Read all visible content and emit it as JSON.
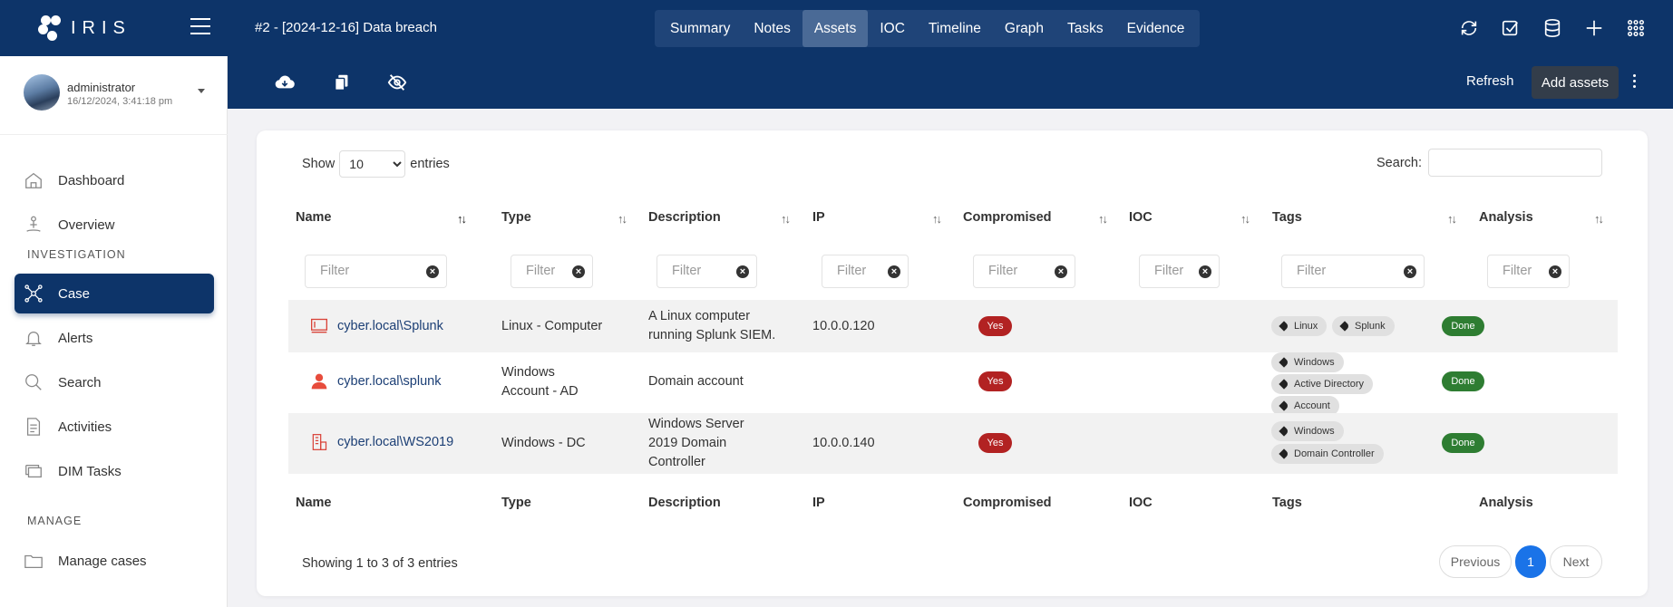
{
  "brand": {
    "name": "IRIS"
  },
  "case_title": "#2 - [2024-12-16] Data breach",
  "tabs": [
    "Summary",
    "Notes",
    "Assets",
    "IOC",
    "Timeline",
    "Graph",
    "Tasks",
    "Evidence"
  ],
  "active_tab": "Assets",
  "top_icons": [
    "refresh-icon",
    "checkbox-icon",
    "database-icon",
    "plus-icon",
    "grid-icon"
  ],
  "user": {
    "name": "administrator",
    "date": "16/12/2024, 3:41:18 pm"
  },
  "sidebar": {
    "items_main": [
      {
        "label": "Dashboard",
        "icon": "home-icon"
      },
      {
        "label": "Overview",
        "icon": "person-pin-icon"
      }
    ],
    "section_investigation": "INVESTIGATION",
    "items_investigation": [
      {
        "label": "Case",
        "icon": "network-icon",
        "active": true
      },
      {
        "label": "Alerts",
        "icon": "bell-icon"
      },
      {
        "label": "Search",
        "icon": "search-icon"
      },
      {
        "label": "Activities",
        "icon": "file-icon"
      },
      {
        "label": "DIM Tasks",
        "icon": "stack-icon"
      }
    ],
    "section_manage": "MANAGE",
    "items_manage": [
      {
        "label": "Manage cases",
        "icon": "folder-icon"
      }
    ]
  },
  "toolbar": {
    "refresh_label": "Refresh",
    "add_label": "Add assets"
  },
  "table": {
    "show_label": "Show",
    "entries_label": "entries",
    "page_size": "10",
    "search_label": "Search:",
    "filter_placeholder": "Filter",
    "columns": [
      "Name",
      "Type",
      "Description",
      "IP",
      "Compromised",
      "IOC",
      "Tags",
      "Analysis"
    ],
    "rows": [
      {
        "icon": "computer-icon",
        "name": "cyber.local\\Splunk",
        "type": [
          "Linux - Computer"
        ],
        "description": [
          "A Linux computer",
          "running Splunk SIEM."
        ],
        "ip": "10.0.0.120",
        "compromised": "Yes",
        "ioc": "",
        "tags": [
          "Linux",
          "Splunk"
        ],
        "analysis": "Done"
      },
      {
        "icon": "user-icon",
        "name": "cyber.local\\splunk",
        "type": [
          "Windows",
          "Account - AD"
        ],
        "description": [
          "Domain account"
        ],
        "ip": "",
        "compromised": "Yes",
        "ioc": "",
        "tags": [
          "Windows",
          "Active Directory",
          "Account"
        ],
        "analysis": "Done"
      },
      {
        "icon": "server-icon",
        "name": "cyber.local\\WS2019",
        "type": [
          "Windows - DC"
        ],
        "description": [
          "Windows Server",
          "2019 Domain",
          "Controller"
        ],
        "ip": "10.0.0.140",
        "compromised": "Yes",
        "ioc": "",
        "tags": [
          "Windows",
          "Domain Controller"
        ],
        "analysis": "Done"
      }
    ],
    "showing_text": "Showing 1 to 3 of 3 entries",
    "pagination": {
      "previous": "Previous",
      "current": "1",
      "next": "Next"
    }
  },
  "colors": {
    "primary": "#0d3469",
    "danger": "#b22222",
    "success": "#2e7d32",
    "page_active": "#1a73e8"
  }
}
